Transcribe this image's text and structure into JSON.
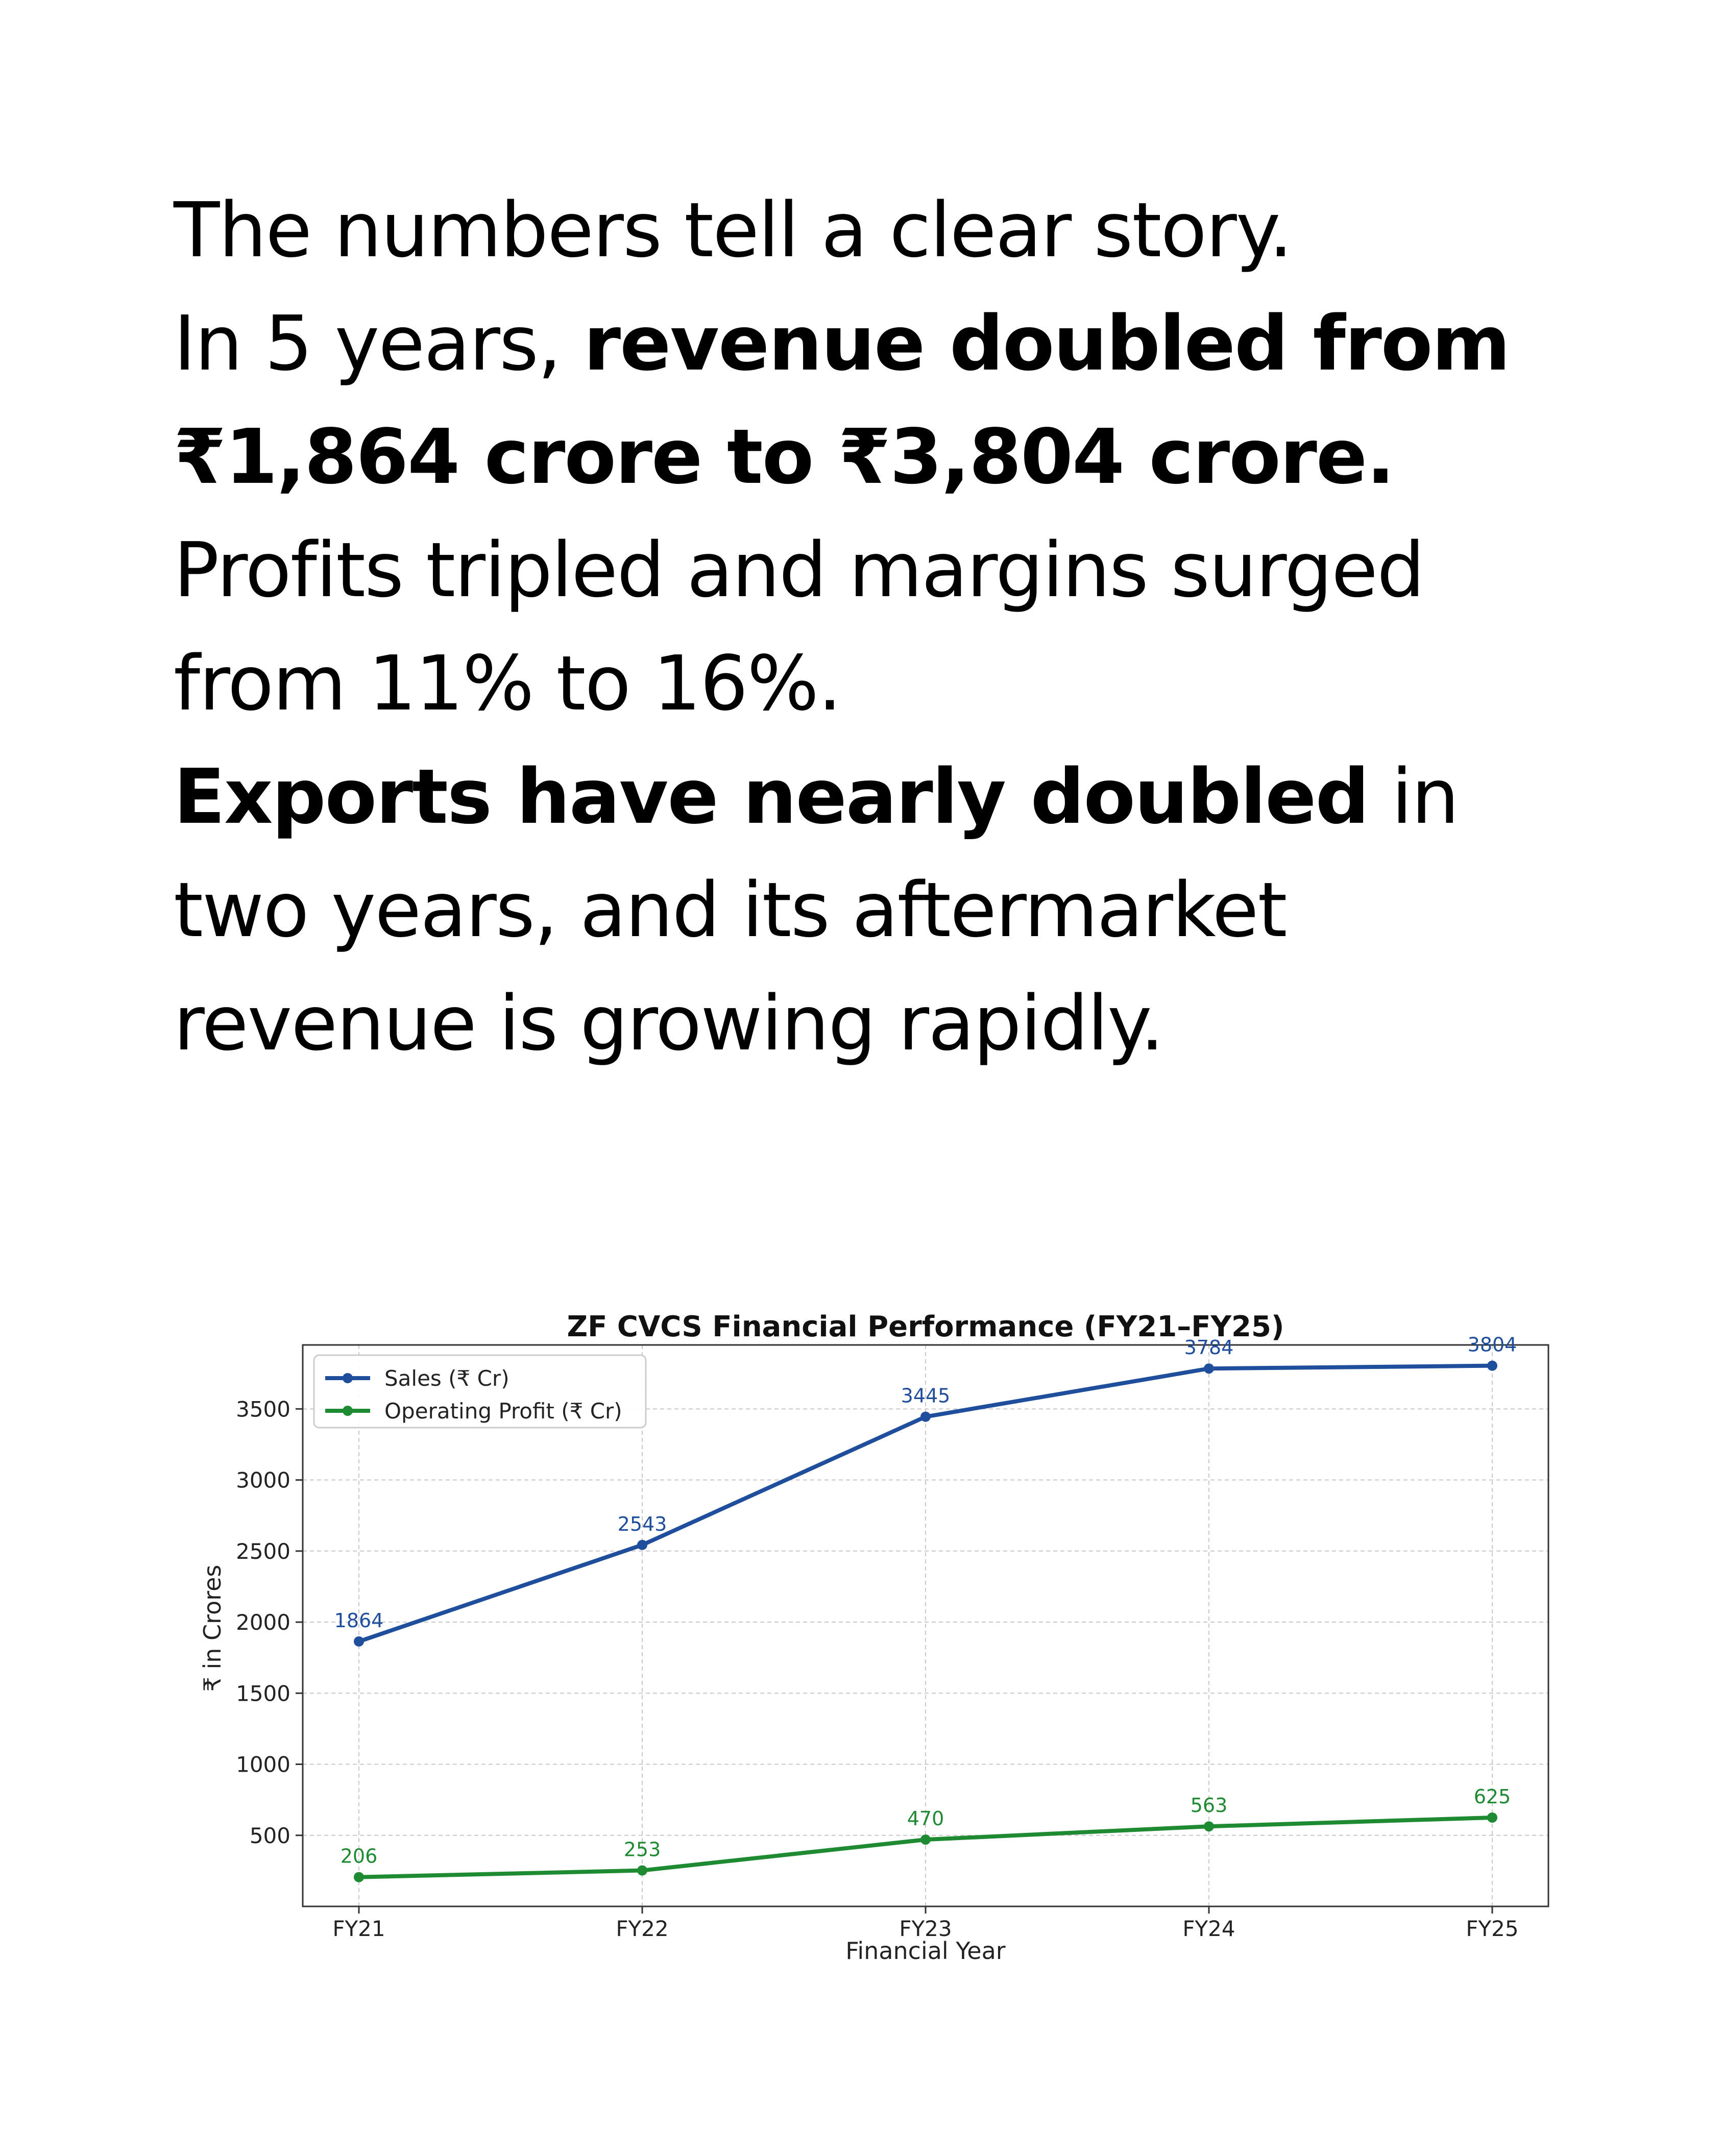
{
  "narrative": {
    "line1": "The numbers tell a clear story.",
    "line2_normal": "In 5 years, ",
    "line2_bold": "revenue doubled from",
    "line3_bold": "₹1,864 crore to ₹3,804 crore.",
    "line4": "Profits tripled and margins surged",
    "line5": "from 11% to 16%.",
    "line6_bold": "Exports have nearly doubled",
    "line6_normal": " in",
    "line7": "two years, and its aftermarket",
    "line8": "revenue is growing rapidly."
  },
  "chart_data": {
    "type": "line",
    "title": "ZF CVCS Financial Performance (FY21–FY25)",
    "xlabel": "Financial Year",
    "ylabel": "₹ in Crores",
    "categories": [
      "FY21",
      "FY22",
      "FY23",
      "FY24",
      "FY25"
    ],
    "ylim": [
      0,
      3950
    ],
    "yticks": [
      500,
      1000,
      1500,
      2000,
      2500,
      3000,
      3500
    ],
    "grid": true,
    "legend_position": "top-left",
    "series": [
      {
        "name": "Sales (₹ Cr)",
        "color": "#1f4e9c",
        "values": [
          1864,
          2543,
          3445,
          3784,
          3804
        ]
      },
      {
        "name": "Operating Profit (₹ Cr)",
        "color": "#1e8a32",
        "values": [
          206,
          253,
          470,
          563,
          625
        ]
      }
    ]
  }
}
